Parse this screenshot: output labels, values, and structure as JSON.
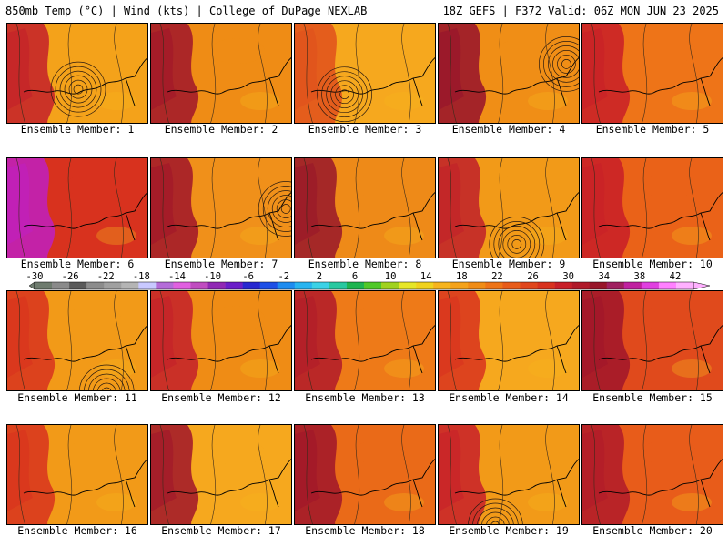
{
  "header": {
    "left": "850mb Temp (°C) | Wind (kts) | College of DuPage NEXLAB",
    "right": "18Z GEFS | F372 Valid: 06Z MON JUN 23 2025"
  },
  "panels": [
    {
      "label": "Ensemble Member: 1",
      "base": "#f4a21a",
      "hot": "#c3202a",
      "low": [
        0.5,
        0.65
      ]
    },
    {
      "label": "Ensemble Member: 2",
      "base": "#ef8c15",
      "hot": "#a0152a",
      "low": null
    },
    {
      "label": "Ensemble Member: 3",
      "base": "#f6a81e",
      "hot": "#e0501c",
      "low": [
        0.35,
        0.7
      ]
    },
    {
      "label": "Ensemble Member: 4",
      "base": "#f08e16",
      "hot": "#96122c",
      "low": [
        0.9,
        0.4
      ]
    },
    {
      "label": "Ensemble Member: 5",
      "base": "#ee7418",
      "hot": "#c81f28",
      "low": null
    },
    {
      "label": "Ensemble Member: 6",
      "base": "#d8321e",
      "hot": "#c020c0",
      "low": null
    },
    {
      "label": "Ensemble Member: 7",
      "base": "#f0901a",
      "hot": "#a0152a",
      "low": [
        0.95,
        0.5
      ]
    },
    {
      "label": "Ensemble Member: 8",
      "base": "#ee8a18",
      "hot": "#98162a",
      "low": null
    },
    {
      "label": "Ensemble Member: 9",
      "base": "#f29a18",
      "hot": "#c0202a",
      "low": [
        0.55,
        0.85
      ]
    },
    {
      "label": "Ensemble Member: 10",
      "base": "#ea6218",
      "hot": "#c81f28",
      "low": null
    },
    {
      "label": "Ensemble Member: 11",
      "base": "#f29a18",
      "hot": "#d8321e",
      "low": [
        0.7,
        1.0
      ]
    },
    {
      "label": "Ensemble Member: 12",
      "base": "#ef8c15",
      "hot": "#c3202a",
      "low": null
    },
    {
      "label": "Ensemble Member: 13",
      "base": "#ee7a18",
      "hot": "#b01a2a",
      "low": null
    },
    {
      "label": "Ensemble Member: 14",
      "base": "#f6a81e",
      "hot": "#d8321e",
      "low": null
    },
    {
      "label": "Ensemble Member: 15",
      "base": "#e04a1c",
      "hot": "#a0152a",
      "low": null
    },
    {
      "label": "Ensemble Member: 16",
      "base": "#f29a18",
      "hot": "#d8321e",
      "low": null
    },
    {
      "label": "Ensemble Member: 17",
      "base": "#f6a81e",
      "hot": "#a0152a",
      "low": null
    },
    {
      "label": "Ensemble Member: 18",
      "base": "#ea6a18",
      "hot": "#a0152a",
      "low": null
    },
    {
      "label": "Ensemble Member: 19",
      "base": "#f29a18",
      "hot": "#c8202a",
      "low": [
        0.4,
        1.0
      ]
    },
    {
      "label": "Ensemble Member: 20",
      "base": "#e85c1a",
      "hot": "#b01a2a",
      "low": null
    }
  ],
  "colorbar": {
    "ticks": [
      "-30",
      "-26",
      "-22",
      "-18",
      "-14",
      "-10",
      "-6",
      "-2",
      "2",
      "6",
      "10",
      "14",
      "18",
      "22",
      "26",
      "30",
      "34",
      "38",
      "42"
    ],
    "colors": [
      "#6e7b6e",
      "#8a8a8a",
      "#5a5a5a",
      "#8c8c8c",
      "#a0a0a0",
      "#b4b4b4",
      "#c8c8ff",
      "#b46cd8",
      "#e060e0",
      "#c04cc0",
      "#9028b4",
      "#6a1ec8",
      "#2828d0",
      "#1e50e6",
      "#1e8cf0",
      "#28b4f0",
      "#3cd2e6",
      "#28c8a0",
      "#1eb450",
      "#50c828",
      "#a0d21e",
      "#e6e628",
      "#f0d21e",
      "#f6b41e",
      "#f4a21a",
      "#f08c16",
      "#ee7418",
      "#e85c1a",
      "#e0461c",
      "#d8321e",
      "#c81f28",
      "#b01a2a",
      "#98162a",
      "#a02060",
      "#c020a0",
      "#e040e0",
      "#ff80ff",
      "#ffb0ff"
    ]
  }
}
